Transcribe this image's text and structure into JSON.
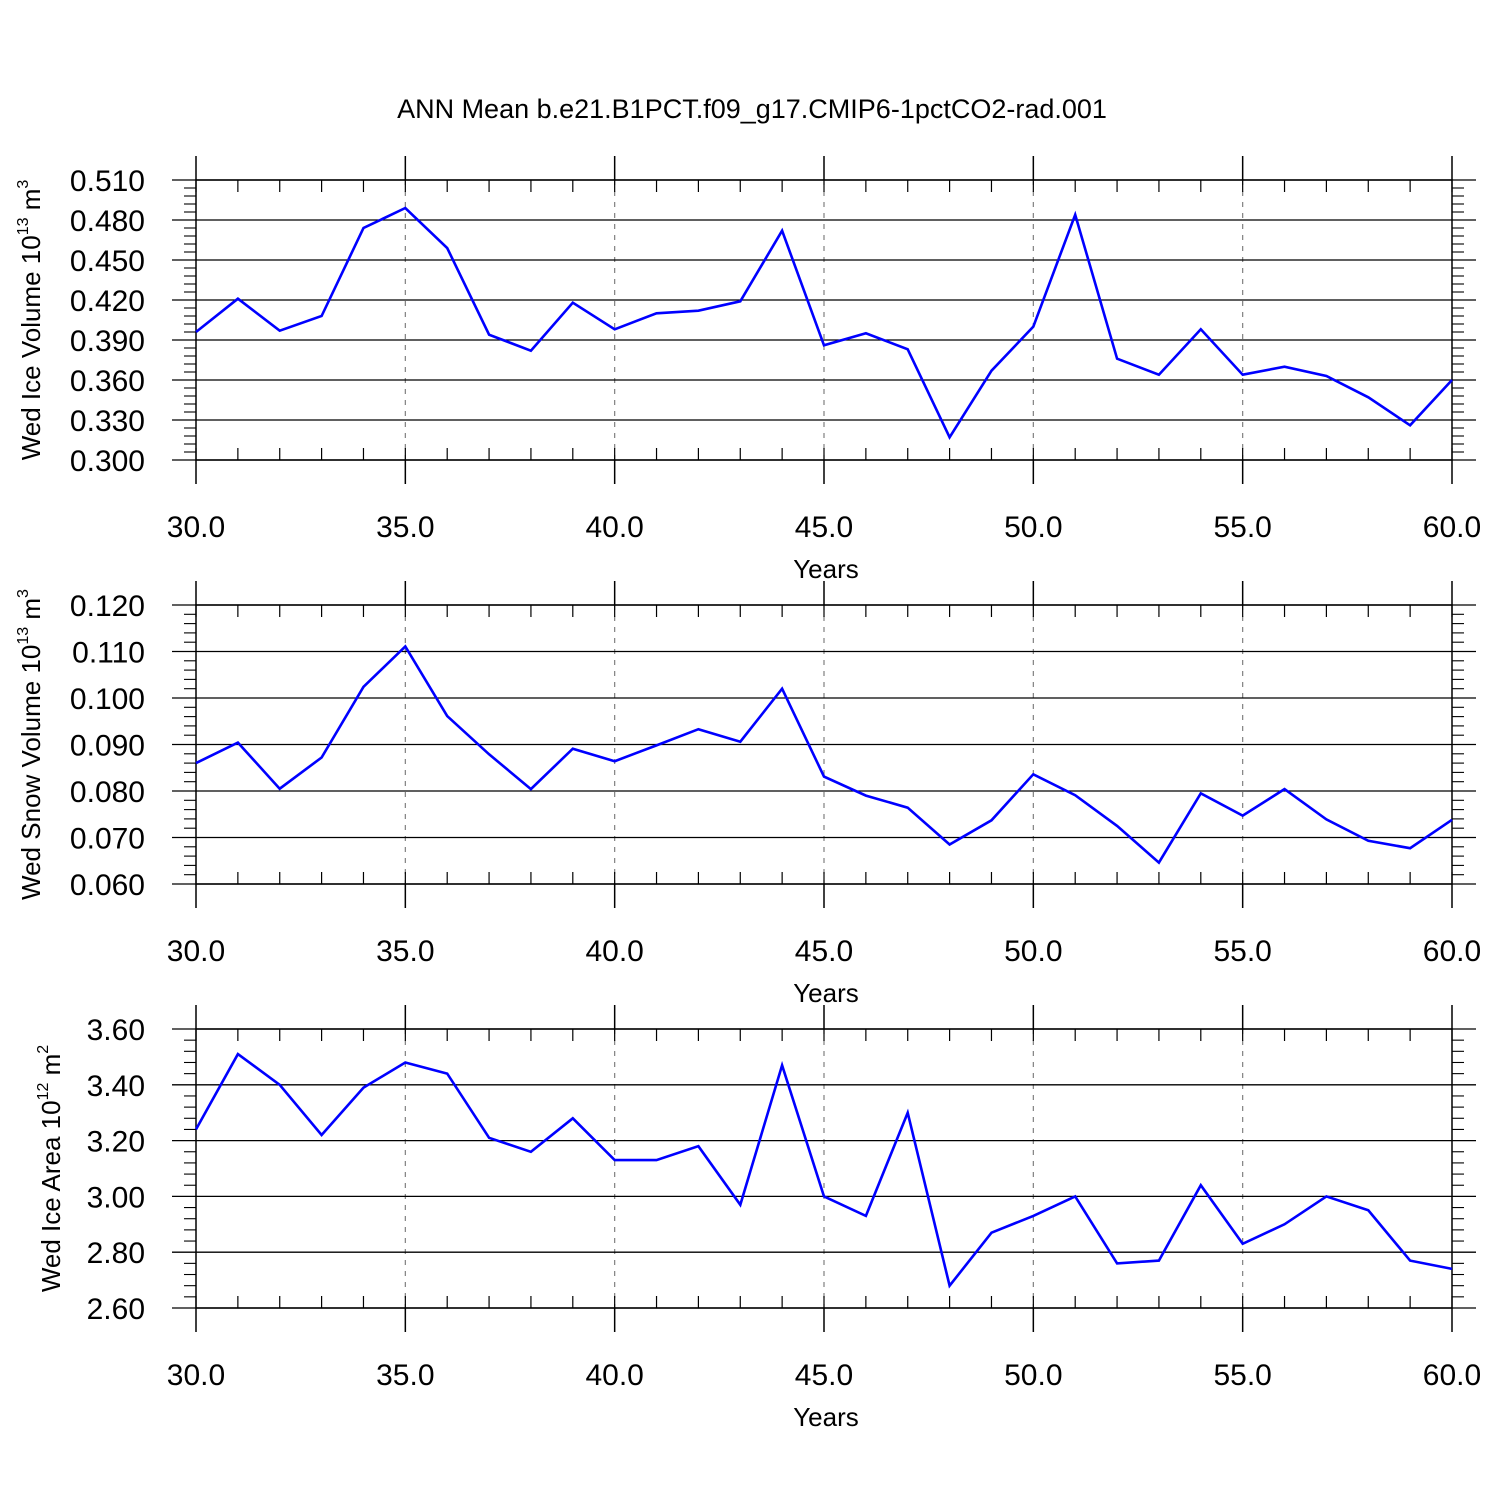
{
  "figure": {
    "title": "ANN Mean b.e21.B1PCT.f09_g17.CMIP6-1pctCO2-rad.001",
    "line_color": "#0000ff",
    "grid_color": "#808080"
  },
  "chart_data": [
    {
      "type": "line",
      "xlabel": "Years",
      "ylabel": {
        "text": "Wed Ice Volume 10",
        "exp": "13",
        "unit": " m",
        "unit_exp": "3"
      },
      "xlim": [
        30,
        60
      ],
      "ylim": [
        0.3,
        0.51
      ],
      "x_ticks": [
        30,
        35,
        40,
        45,
        50,
        55,
        60
      ],
      "x_tick_labels": [
        "30.0",
        "35.0",
        "40.0",
        "45.0",
        "50.0",
        "55.0",
        "60.0"
      ],
      "y_ticks": [
        0.3,
        0.33,
        0.36,
        0.39,
        0.42,
        0.45,
        0.48,
        0.51
      ],
      "y_tick_labels": [
        "0.300",
        "0.330",
        "0.360",
        "0.390",
        "0.420",
        "0.450",
        "0.480",
        "0.510"
      ],
      "grid": "vertical-dashed",
      "x": [
        30,
        31,
        32,
        33,
        34,
        35,
        36,
        37,
        38,
        39,
        40,
        41,
        42,
        43,
        44,
        45,
        46,
        47,
        48,
        49,
        50,
        51,
        52,
        53,
        54,
        55,
        56,
        57,
        58,
        59,
        60
      ],
      "values": [
        0.396,
        0.421,
        0.397,
        0.408,
        0.474,
        0.489,
        0.459,
        0.394,
        0.382,
        0.418,
        0.398,
        0.41,
        0.412,
        0.419,
        0.472,
        0.386,
        0.395,
        0.383,
        0.317,
        0.367,
        0.4,
        0.484,
        0.376,
        0.364,
        0.398,
        0.364,
        0.37,
        0.363,
        0.347,
        0.326,
        0.36
      ]
    },
    {
      "type": "line",
      "xlabel": "Years",
      "ylabel": {
        "text": "Wed Snow Volume 10",
        "exp": "13",
        "unit": " m",
        "unit_exp": "3"
      },
      "xlim": [
        30,
        60
      ],
      "ylim": [
        0.06,
        0.12
      ],
      "x_ticks": [
        30,
        35,
        40,
        45,
        50,
        55,
        60
      ],
      "x_tick_labels": [
        "30.0",
        "35.0",
        "40.0",
        "45.0",
        "50.0",
        "55.0",
        "60.0"
      ],
      "y_ticks": [
        0.06,
        0.07,
        0.08,
        0.09,
        0.1,
        0.11,
        0.12
      ],
      "y_tick_labels": [
        "0.060",
        "0.070",
        "0.080",
        "0.090",
        "0.100",
        "0.110",
        "0.120"
      ],
      "grid": "vertical-dashed",
      "x": [
        30,
        31,
        32,
        33,
        34,
        35,
        36,
        37,
        38,
        39,
        40,
        41,
        42,
        43,
        44,
        45,
        46,
        47,
        48,
        49,
        50,
        51,
        52,
        53,
        54,
        55,
        56,
        57,
        58,
        59,
        60
      ],
      "values": [
        0.086,
        0.0904,
        0.0805,
        0.0872,
        0.1024,
        0.1111,
        0.0961,
        0.0879,
        0.0804,
        0.0891,
        0.0864,
        0.0898,
        0.0933,
        0.0906,
        0.102,
        0.0831,
        0.079,
        0.0764,
        0.0685,
        0.0737,
        0.0836,
        0.0791,
        0.0725,
        0.0646,
        0.0795,
        0.0747,
        0.0804,
        0.0739,
        0.0693,
        0.0677,
        0.0738
      ]
    },
    {
      "type": "line",
      "xlabel": "Years",
      "ylabel": {
        "text": "Wed Ice Area 10",
        "exp": "12",
        "unit": " m",
        "unit_exp": "2"
      },
      "xlim": [
        30,
        60
      ],
      "ylim": [
        2.6,
        3.6
      ],
      "x_ticks": [
        30,
        35,
        40,
        45,
        50,
        55,
        60
      ],
      "x_tick_labels": [
        "30.0",
        "35.0",
        "40.0",
        "45.0",
        "50.0",
        "55.0",
        "60.0"
      ],
      "y_ticks": [
        2.6,
        2.8,
        3.0,
        3.2,
        3.4,
        3.6
      ],
      "y_tick_labels": [
        "2.60",
        "2.80",
        "3.00",
        "3.20",
        "3.40",
        "3.60"
      ],
      "grid": "vertical-dashed",
      "x": [
        30,
        31,
        32,
        33,
        34,
        35,
        36,
        37,
        38,
        39,
        40,
        41,
        42,
        43,
        44,
        45,
        46,
        47,
        48,
        49,
        50,
        51,
        52,
        53,
        54,
        55,
        56,
        57,
        58,
        59,
        60
      ],
      "values": [
        3.24,
        3.51,
        3.4,
        3.22,
        3.39,
        3.48,
        3.44,
        3.21,
        3.16,
        3.28,
        3.13,
        3.13,
        3.18,
        2.97,
        3.47,
        3.0,
        2.93,
        3.3,
        2.68,
        2.87,
        2.93,
        3.0,
        2.76,
        2.77,
        3.04,
        2.83,
        2.9,
        3.0,
        2.95,
        2.77,
        2.74
      ]
    }
  ]
}
